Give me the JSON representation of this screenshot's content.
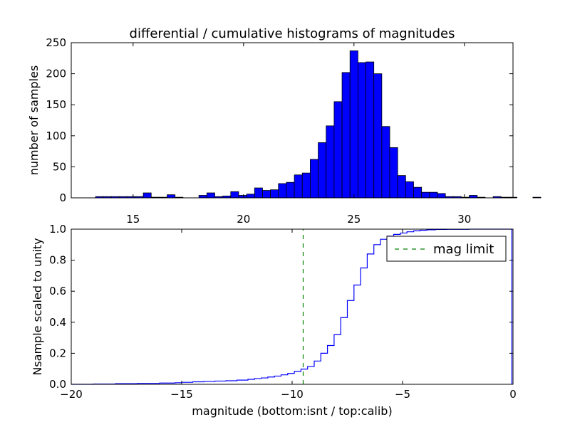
{
  "chart_data": [
    {
      "type": "bar",
      "title": "differential / cumulative histograms of magnitudes",
      "xlabel": "",
      "ylabel": "number of samples",
      "xlim": [
        12.2,
        32.2
      ],
      "ylim": [
        0,
        250
      ],
      "xticks": [
        15,
        20,
        25,
        30
      ],
      "yticks": [
        0,
        50,
        100,
        150,
        200,
        250
      ],
      "bin_width": 0.36,
      "bin_start": 13.3,
      "color": "#0000ff",
      "values": [
        2,
        2,
        2,
        2,
        2,
        2,
        8,
        1,
        1,
        5,
        1,
        0,
        0,
        4,
        8,
        2,
        3,
        10,
        4,
        6,
        16,
        12,
        13,
        23,
        25,
        37,
        40,
        62,
        89,
        116,
        155,
        202,
        237,
        218,
        219,
        200,
        115,
        81,
        36,
        26,
        17,
        9,
        9,
        7,
        2,
        2,
        1,
        4,
        1,
        0,
        2,
        1,
        1,
        0,
        0,
        1,
        0,
        0,
        0,
        0,
        0
      ]
    },
    {
      "type": "line",
      "title": "",
      "xlabel": "magnitude (bottom:isnt / top:calib)",
      "ylabel": "Nsample scaled to unity",
      "xlim": [
        -20,
        0
      ],
      "ylim": [
        0.0,
        1.0
      ],
      "xticks": [
        -20,
        -15,
        -10,
        -5,
        0
      ],
      "xtick_labels": [
        "−20",
        "−15",
        "−10",
        "−5",
        "0"
      ],
      "yticks": [
        0.0,
        0.2,
        0.4,
        0.6,
        0.8,
        1.0
      ],
      "ytick_labels": [
        "0.0",
        "0.2",
        "0.4",
        "0.6",
        "0.8",
        "1.0"
      ],
      "legend_position": "top-right",
      "series": [
        {
          "name": "",
          "color": "#0000ff",
          "style": "step",
          "x": [
            -20,
            -19,
            -18,
            -17,
            -16,
            -15.3,
            -15,
            -14.5,
            -14,
            -13.5,
            -13,
            -12.5,
            -12,
            -11.7,
            -11.4,
            -11.1,
            -10.8,
            -10.5,
            -10.2,
            -9.9,
            -9.6,
            -9.3,
            -9.0,
            -8.7,
            -8.4,
            -8.1,
            -7.8,
            -7.5,
            -7.2,
            -6.9,
            -6.6,
            -6.3,
            -6.0,
            -5.7,
            -5.4,
            -5.1,
            -4.8,
            -4.5,
            -4.2,
            -3.9,
            -3.5,
            -3.0,
            -2.0,
            -1.0,
            -0.05,
            -0.05
          ],
          "y": [
            0.0,
            0.002,
            0.004,
            0.006,
            0.008,
            0.01,
            0.013,
            0.016,
            0.018,
            0.021,
            0.023,
            0.027,
            0.032,
            0.037,
            0.041,
            0.047,
            0.053,
            0.061,
            0.07,
            0.083,
            0.098,
            0.115,
            0.15,
            0.2,
            0.25,
            0.32,
            0.43,
            0.54,
            0.64,
            0.75,
            0.84,
            0.9,
            0.935,
            0.955,
            0.966,
            0.975,
            0.983,
            0.989,
            0.993,
            0.996,
            0.998,
            0.999,
            1.0,
            1.0,
            1.0,
            0.0
          ]
        },
        {
          "name": "mag limit",
          "color": "#008000",
          "style": "dashed-vline",
          "x": [
            -9.5,
            -9.5
          ],
          "y": [
            0.0,
            1.0
          ]
        }
      ]
    }
  ]
}
